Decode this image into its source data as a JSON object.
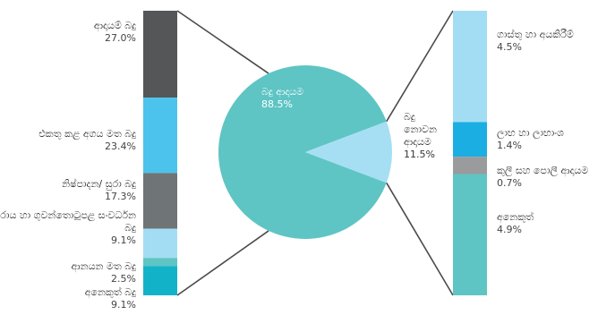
{
  "chart_data": {
    "type": "pie",
    "pie": {
      "slices": [
        {
          "name": "බදු ආදායම",
          "value": 88.5,
          "value_label": "88.5%",
          "color": "#5ec5c4"
        },
        {
          "name": "බදු නොවන ආදායම",
          "value": 11.5,
          "value_label": "11.5%",
          "color": "#a6dff3"
        }
      ]
    },
    "left_bar": {
      "segments": [
        {
          "name": "ආදායම් බදු",
          "value": 27.0,
          "value_label": "27.0%",
          "color": "#545658"
        },
        {
          "name": "එකතු කළ අගය මත බදු",
          "value": 23.4,
          "value_label": "23.4%",
          "color": "#4cc3ec"
        },
        {
          "name": "නිෂ්පාදන/ සුරා බදු",
          "value": 17.3,
          "value_label": "17.3%",
          "color": "#6f7476"
        },
        {
          "name": "වරාය හා ගුවන්තොටුපළ සංවර්ධන බදු",
          "value": 9.1,
          "value_label": "9.1%",
          "color": "#a3ddf3"
        },
        {
          "name": "ආනයන මත බදු",
          "value": 2.5,
          "value_label": "2.5%",
          "color": "#5ec5c4"
        },
        {
          "name": "අනෙකුත් බදු",
          "value": 9.1,
          "value_label": "9.1%",
          "color": "#12b3c9"
        }
      ]
    },
    "right_bar": {
      "segments": [
        {
          "name": "ගාස්තු හා අයකිරීම්",
          "value": 4.5,
          "value_label": "4.5%",
          "color": "#a3ddf3"
        },
        {
          "name": "ලාභ හා ලාභාංශ",
          "value": 1.4,
          "value_label": "1.4%",
          "color": "#1aaee3"
        },
        {
          "name": "කුලී සහ පොලී ආදායම",
          "value": 0.7,
          "value_label": "0.7%",
          "color": "#999b9d"
        },
        {
          "name": "අනෙකුත්",
          "value": 4.9,
          "value_label": "4.9%",
          "color": "#5ec5c4"
        }
      ]
    }
  }
}
